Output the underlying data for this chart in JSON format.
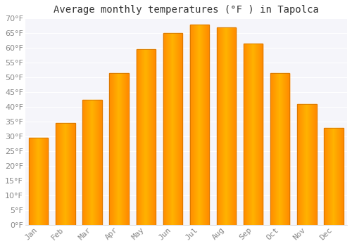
{
  "title": "Average monthly temperatures (°F ) in Tapolca",
  "months": [
    "Jan",
    "Feb",
    "Mar",
    "Apr",
    "May",
    "Jun",
    "Jul",
    "Aug",
    "Sep",
    "Oct",
    "Nov",
    "Dec"
  ],
  "values": [
    29.5,
    34.5,
    42.5,
    51.5,
    59.5,
    65.0,
    68.0,
    67.0,
    61.5,
    51.5,
    41.0,
    33.0
  ],
  "bar_color_center": "#FFB300",
  "bar_color_edge": "#FF8C00",
  "bar_edge_color": "#CC7000",
  "ylim": [
    0,
    70
  ],
  "yticks": [
    0,
    5,
    10,
    15,
    20,
    25,
    30,
    35,
    40,
    45,
    50,
    55,
    60,
    65,
    70
  ],
  "background_color": "#ffffff",
  "plot_bg_color": "#f5f5fa",
  "grid_color": "#ffffff",
  "title_fontsize": 10,
  "tick_fontsize": 8,
  "title_color": "#333333",
  "tick_color": "#888888",
  "bar_width": 0.72
}
